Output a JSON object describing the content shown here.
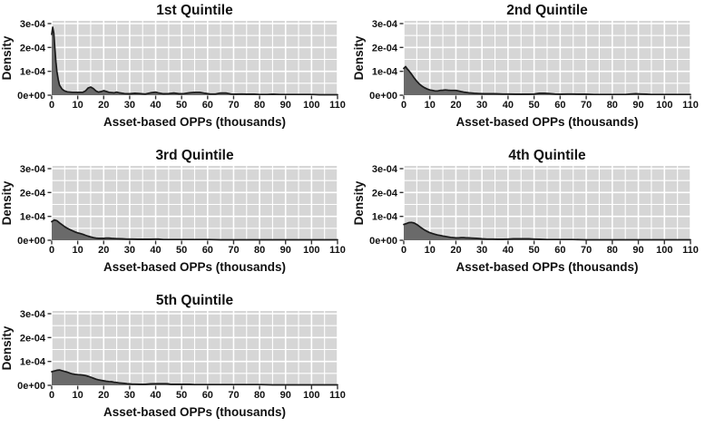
{
  "figure": {
    "description": "Density plots of asset-based OPPs by wealth quintile",
    "background": "#ffffff"
  },
  "chart_style": {
    "plot_bg": "#d6d6d6",
    "grid_color": "#ffffff",
    "curve_color": "#1a1a1a",
    "fill_color": "#6a6a6a",
    "tick_color": "#333333",
    "text_color": "#111111"
  },
  "chart_data": [
    {
      "type": "area",
      "title": "1st Quintile",
      "xlabel": "Asset-based OPPs (thousands)",
      "ylabel": "Density",
      "xlim": [
        0,
        110
      ],
      "ylim": [
        0,
        3.1
      ],
      "y_unit": "1e-04",
      "grid": "on",
      "x_tick_labels": [
        "0",
        "10",
        "20",
        "30",
        "40",
        "50",
        "60",
        "70",
        "80",
        "90",
        "100",
        "110"
      ],
      "y_tick_labels": [
        "0e+00",
        "1e-04",
        "2e-04",
        "3e-04"
      ],
      "points": [
        [
          0,
          2.55
        ],
        [
          0.4,
          2.85
        ],
        [
          0.8,
          2.6
        ],
        [
          1.2,
          2.0
        ],
        [
          1.6,
          1.4
        ],
        [
          2,
          1.0
        ],
        [
          2.5,
          0.65
        ],
        [
          3,
          0.42
        ],
        [
          4,
          0.25
        ],
        [
          5,
          0.18
        ],
        [
          6,
          0.14
        ],
        [
          8,
          0.12
        ],
        [
          10,
          0.12
        ],
        [
          12,
          0.12
        ],
        [
          13,
          0.18
        ],
        [
          14,
          0.3
        ],
        [
          15,
          0.34
        ],
        [
          16,
          0.28
        ],
        [
          17,
          0.18
        ],
        [
          18,
          0.13
        ],
        [
          19,
          0.15
        ],
        [
          20,
          0.19
        ],
        [
          21,
          0.16
        ],
        [
          22,
          0.12
        ],
        [
          24,
          0.1
        ],
        [
          25,
          0.13
        ],
        [
          26,
          0.1
        ],
        [
          28,
          0.07
        ],
        [
          30,
          0.06
        ],
        [
          32,
          0.08
        ],
        [
          34,
          0.07
        ],
        [
          36,
          0.05
        ],
        [
          38,
          0.1
        ],
        [
          40,
          0.13
        ],
        [
          41,
          0.1
        ],
        [
          43,
          0.06
        ],
        [
          45,
          0.07
        ],
        [
          47,
          0.09
        ],
        [
          49,
          0.06
        ],
        [
          51,
          0.07
        ],
        [
          53,
          0.1
        ],
        [
          55,
          0.12
        ],
        [
          57,
          0.12
        ],
        [
          59,
          0.08
        ],
        [
          61,
          0.05
        ],
        [
          63,
          0.05
        ],
        [
          65,
          0.09
        ],
        [
          67,
          0.09
        ],
        [
          69,
          0.05
        ],
        [
          71,
          0.04
        ],
        [
          73,
          0.05
        ],
        [
          75,
          0.04
        ],
        [
          78,
          0.04
        ],
        [
          80,
          0.03
        ],
        [
          83,
          0.03
        ],
        [
          85,
          0.04
        ],
        [
          88,
          0.03
        ],
        [
          90,
          0.03
        ],
        [
          93,
          0.03
        ],
        [
          95,
          0.03
        ],
        [
          98,
          0.03
        ],
        [
          100,
          0.03
        ],
        [
          103,
          0.02
        ],
        [
          105,
          0.02
        ],
        [
          108,
          0.02
        ],
        [
          110,
          0.02
        ]
      ]
    },
    {
      "type": "area",
      "title": "2nd Quintile",
      "xlabel": "Asset-based OPPs (thousands)",
      "ylabel": "Density",
      "xlim": [
        0,
        110
      ],
      "ylim": [
        0,
        3.1
      ],
      "y_unit": "1e-04",
      "grid": "on",
      "x_tick_labels": [
        "0",
        "10",
        "20",
        "30",
        "40",
        "50",
        "60",
        "70",
        "80",
        "90",
        "100",
        "110"
      ],
      "y_tick_labels": [
        "0e+00",
        "1e-04",
        "2e-04",
        "3e-04"
      ],
      "points": [
        [
          0,
          1.12
        ],
        [
          0.7,
          1.2
        ],
        [
          1.2,
          1.12
        ],
        [
          2,
          1.02
        ],
        [
          3,
          0.88
        ],
        [
          4,
          0.72
        ],
        [
          5,
          0.58
        ],
        [
          6,
          0.47
        ],
        [
          7,
          0.38
        ],
        [
          8,
          0.31
        ],
        [
          9,
          0.26
        ],
        [
          10,
          0.22
        ],
        [
          11,
          0.2
        ],
        [
          12,
          0.18
        ],
        [
          13,
          0.18
        ],
        [
          14,
          0.2
        ],
        [
          15,
          0.21
        ],
        [
          16,
          0.22
        ],
        [
          17,
          0.21
        ],
        [
          18,
          0.2
        ],
        [
          19,
          0.2
        ],
        [
          20,
          0.2
        ],
        [
          21,
          0.18
        ],
        [
          22,
          0.15
        ],
        [
          23,
          0.13
        ],
        [
          25,
          0.1
        ],
        [
          27,
          0.08
        ],
        [
          29,
          0.07
        ],
        [
          31,
          0.06
        ],
        [
          33,
          0.06
        ],
        [
          35,
          0.06
        ],
        [
          38,
          0.05
        ],
        [
          40,
          0.05
        ],
        [
          43,
          0.04
        ],
        [
          45,
          0.04
        ],
        [
          48,
          0.04
        ],
        [
          50,
          0.05
        ],
        [
          52,
          0.08
        ],
        [
          54,
          0.08
        ],
        [
          56,
          0.07
        ],
        [
          58,
          0.05
        ],
        [
          60,
          0.04
        ],
        [
          63,
          0.05
        ],
        [
          65,
          0.05
        ],
        [
          67,
          0.04
        ],
        [
          70,
          0.04
        ],
        [
          73,
          0.03
        ],
        [
          75,
          0.03
        ],
        [
          78,
          0.03
        ],
        [
          80,
          0.03
        ],
        [
          83,
          0.03
        ],
        [
          85,
          0.03
        ],
        [
          87,
          0.05
        ],
        [
          89,
          0.06
        ],
        [
          91,
          0.05
        ],
        [
          93,
          0.04
        ],
        [
          95,
          0.03
        ],
        [
          98,
          0.03
        ],
        [
          100,
          0.03
        ],
        [
          103,
          0.03
        ],
        [
          105,
          0.03
        ],
        [
          108,
          0.03
        ],
        [
          110,
          0.03
        ]
      ]
    },
    {
      "type": "area",
      "title": "3rd Quintile",
      "xlabel": "Asset-based OPPs (thousands)",
      "ylabel": "Density",
      "xlim": [
        0,
        110
      ],
      "ylim": [
        0,
        3.1
      ],
      "y_unit": "1e-04",
      "grid": "on",
      "x_tick_labels": [
        "0",
        "10",
        "20",
        "30",
        "40",
        "50",
        "60",
        "70",
        "80",
        "90",
        "100",
        "110"
      ],
      "y_tick_labels": [
        "0e+00",
        "1e-04",
        "2e-04",
        "3e-04"
      ],
      "points": [
        [
          0,
          0.78
        ],
        [
          1,
          0.85
        ],
        [
          2,
          0.82
        ],
        [
          3,
          0.73
        ],
        [
          4,
          0.65
        ],
        [
          5,
          0.57
        ],
        [
          6,
          0.5
        ],
        [
          7,
          0.45
        ],
        [
          8,
          0.4
        ],
        [
          9,
          0.35
        ],
        [
          10,
          0.31
        ],
        [
          11,
          0.28
        ],
        [
          12,
          0.25
        ],
        [
          13,
          0.21
        ],
        [
          14,
          0.17
        ],
        [
          15,
          0.14
        ],
        [
          16,
          0.11
        ],
        [
          17,
          0.09
        ],
        [
          18,
          0.08
        ],
        [
          19,
          0.08
        ],
        [
          20,
          0.08
        ],
        [
          21,
          0.09
        ],
        [
          22,
          0.09
        ],
        [
          23,
          0.08
        ],
        [
          25,
          0.07
        ],
        [
          27,
          0.06
        ],
        [
          29,
          0.05
        ],
        [
          31,
          0.05
        ],
        [
          33,
          0.04
        ],
        [
          35,
          0.04
        ],
        [
          38,
          0.04
        ],
        [
          40,
          0.05
        ],
        [
          41,
          0.05
        ],
        [
          43,
          0.03
        ],
        [
          45,
          0.03
        ],
        [
          48,
          0.03
        ],
        [
          50,
          0.03
        ],
        [
          55,
          0.03
        ],
        [
          60,
          0.03
        ],
        [
          65,
          0.02
        ],
        [
          70,
          0.02
        ],
        [
          75,
          0.02
        ],
        [
          80,
          0.02
        ],
        [
          85,
          0.02
        ],
        [
          90,
          0.02
        ],
        [
          95,
          0.02
        ],
        [
          100,
          0.02
        ],
        [
          105,
          0.02
        ],
        [
          110,
          0.02
        ]
      ]
    },
    {
      "type": "area",
      "title": "4th Quintile",
      "xlabel": "Asset-based OPPs (thousands)",
      "ylabel": "Density",
      "xlim": [
        0,
        110
      ],
      "ylim": [
        0,
        3.1
      ],
      "y_unit": "1e-04",
      "grid": "on",
      "x_tick_labels": [
        "0",
        "10",
        "20",
        "30",
        "40",
        "50",
        "60",
        "70",
        "80",
        "90",
        "100",
        "110"
      ],
      "y_tick_labels": [
        "0e+00",
        "1e-04",
        "2e-04",
        "3e-04"
      ],
      "points": [
        [
          0,
          0.66
        ],
        [
          1,
          0.7
        ],
        [
          2,
          0.74
        ],
        [
          3,
          0.75
        ],
        [
          4,
          0.72
        ],
        [
          5,
          0.66
        ],
        [
          6,
          0.58
        ],
        [
          7,
          0.5
        ],
        [
          8,
          0.43
        ],
        [
          9,
          0.37
        ],
        [
          10,
          0.32
        ],
        [
          11,
          0.28
        ],
        [
          12,
          0.25
        ],
        [
          13,
          0.22
        ],
        [
          14,
          0.2
        ],
        [
          15,
          0.18
        ],
        [
          16,
          0.16
        ],
        [
          17,
          0.14
        ],
        [
          18,
          0.12
        ],
        [
          19,
          0.11
        ],
        [
          20,
          0.1
        ],
        [
          21,
          0.1
        ],
        [
          22,
          0.11
        ],
        [
          23,
          0.11
        ],
        [
          24,
          0.1
        ],
        [
          25,
          0.1
        ],
        [
          26,
          0.09
        ],
        [
          28,
          0.08
        ],
        [
          30,
          0.06
        ],
        [
          32,
          0.05
        ],
        [
          34,
          0.05
        ],
        [
          36,
          0.04
        ],
        [
          38,
          0.04
        ],
        [
          40,
          0.05
        ],
        [
          42,
          0.06
        ],
        [
          44,
          0.06
        ],
        [
          46,
          0.06
        ],
        [
          48,
          0.06
        ],
        [
          50,
          0.05
        ],
        [
          52,
          0.04
        ],
        [
          55,
          0.03
        ],
        [
          58,
          0.03
        ],
        [
          60,
          0.03
        ],
        [
          65,
          0.03
        ],
        [
          70,
          0.02
        ],
        [
          75,
          0.02
        ],
        [
          80,
          0.02
        ],
        [
          85,
          0.02
        ],
        [
          90,
          0.02
        ],
        [
          95,
          0.02
        ],
        [
          100,
          0.02
        ],
        [
          105,
          0.02
        ],
        [
          110,
          0.02
        ]
      ]
    },
    {
      "type": "area",
      "title": "5th Quintile",
      "xlabel": "Asset-based OPPs (thousands)",
      "ylabel": "Density",
      "xlim": [
        0,
        110
      ],
      "ylim": [
        0,
        3.1
      ],
      "y_unit": "1e-04",
      "grid": "on",
      "x_tick_labels": [
        "0",
        "10",
        "20",
        "30",
        "40",
        "50",
        "60",
        "70",
        "80",
        "90",
        "100",
        "110"
      ],
      "y_tick_labels": [
        "0e+00",
        "1e-04",
        "2e-04",
        "3e-04"
      ],
      "points": [
        [
          0,
          0.57
        ],
        [
          1,
          0.6
        ],
        [
          2,
          0.63
        ],
        [
          3,
          0.64
        ],
        [
          4,
          0.61
        ],
        [
          5,
          0.58
        ],
        [
          6,
          0.55
        ],
        [
          7,
          0.51
        ],
        [
          8,
          0.48
        ],
        [
          9,
          0.46
        ],
        [
          10,
          0.45
        ],
        [
          11,
          0.44
        ],
        [
          12,
          0.43
        ],
        [
          13,
          0.41
        ],
        [
          14,
          0.38
        ],
        [
          15,
          0.34
        ],
        [
          16,
          0.3
        ],
        [
          17,
          0.26
        ],
        [
          18,
          0.23
        ],
        [
          19,
          0.21
        ],
        [
          20,
          0.19
        ],
        [
          21,
          0.17
        ],
        [
          22,
          0.16
        ],
        [
          23,
          0.15
        ],
        [
          24,
          0.13
        ],
        [
          25,
          0.12
        ],
        [
          26,
          0.1
        ],
        [
          27,
          0.09
        ],
        [
          28,
          0.08
        ],
        [
          29,
          0.07
        ],
        [
          30,
          0.06
        ],
        [
          31,
          0.05
        ],
        [
          32,
          0.05
        ],
        [
          34,
          0.04
        ],
        [
          36,
          0.04
        ],
        [
          38,
          0.06
        ],
        [
          40,
          0.07
        ],
        [
          42,
          0.07
        ],
        [
          44,
          0.07
        ],
        [
          45,
          0.06
        ],
        [
          46,
          0.04
        ],
        [
          48,
          0.04
        ],
        [
          50,
          0.04
        ],
        [
          53,
          0.04
        ],
        [
          55,
          0.03
        ],
        [
          58,
          0.03
        ],
        [
          60,
          0.03
        ],
        [
          63,
          0.03
        ],
        [
          65,
          0.03
        ],
        [
          70,
          0.03
        ],
        [
          75,
          0.03
        ],
        [
          80,
          0.03
        ],
        [
          85,
          0.02
        ],
        [
          90,
          0.02
        ],
        [
          95,
          0.02
        ],
        [
          100,
          0.02
        ],
        [
          105,
          0.02
        ],
        [
          110,
          0.02
        ]
      ]
    }
  ]
}
